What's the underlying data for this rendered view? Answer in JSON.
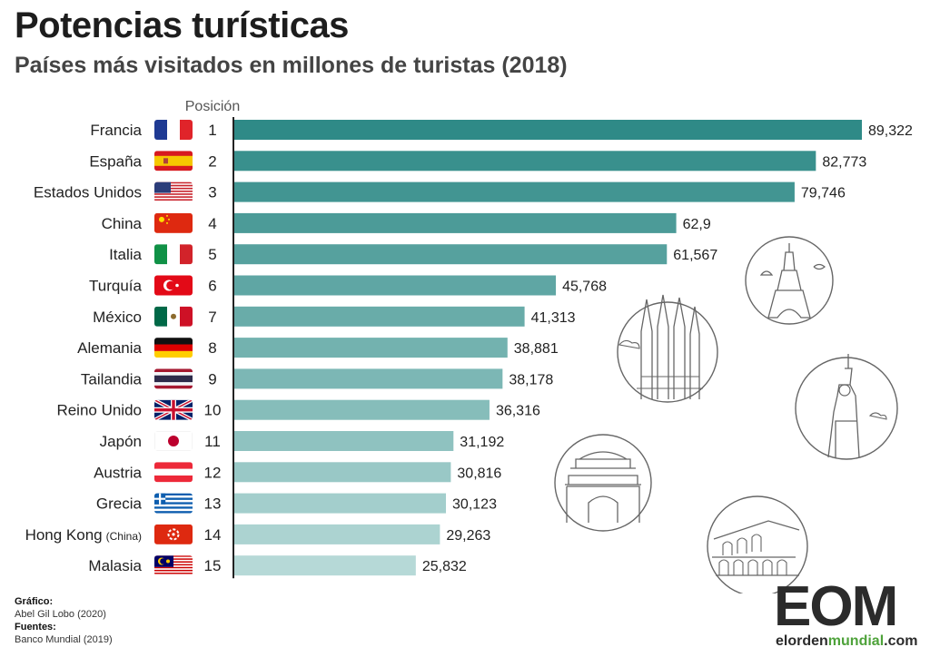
{
  "title": "Potencias turísticas",
  "subtitle": "Países más visitados en millones de turistas (2018)",
  "position_header": "Posición",
  "chart_data": {
    "type": "bar",
    "orientation": "horizontal",
    "title": "Potencias turísticas",
    "subtitle": "Países más visitados en millones de turistas (2018)",
    "categories": [
      "Francia",
      "España",
      "Estados Unidos",
      "China",
      "Italia",
      "Turquía",
      "México",
      "Alemania",
      "Tailandia",
      "Reino Unido",
      "Japón",
      "Austria",
      "Grecia",
      "Hong Kong",
      "Malasia"
    ],
    "category_notes": [
      "",
      "",
      "",
      "",
      "",
      "",
      "",
      "",
      "",
      "",
      "",
      "",
      "",
      "(China)",
      ""
    ],
    "positions": [
      "1",
      "2",
      "3",
      "4",
      "5",
      "6",
      "7",
      "8",
      "9",
      "10",
      "11",
      "12",
      "13",
      "14",
      "15"
    ],
    "values": [
      89.322,
      82.773,
      79.746,
      62.9,
      61.567,
      45.768,
      41.313,
      38.881,
      38.178,
      36.316,
      31.192,
      30.816,
      30.123,
      29.263,
      25.832
    ],
    "value_labels": [
      "89,322",
      "82,773",
      "79,746",
      "62,9",
      "61,567",
      "45,768",
      "41,313",
      "38,881",
      "38,178",
      "36,316",
      "31,192",
      "30,816",
      "30,123",
      "29,263",
      "25,832"
    ],
    "xlim": [
      0,
      89.322
    ],
    "grid": false,
    "bar_color_start": "#2f8a87",
    "bar_color_end": "#b6d9d7"
  },
  "flags": [
    "france-flag-icon",
    "spain-flag-icon",
    "usa-flag-icon",
    "china-flag-icon",
    "italy-flag-icon",
    "turkey-flag-icon",
    "mexico-flag-icon",
    "germany-flag-icon",
    "thailand-flag-icon",
    "uk-flag-icon",
    "japan-flag-icon",
    "austria-flag-icon",
    "greece-flag-icon",
    "hongkong-flag-icon",
    "malaysia-flag-icon"
  ],
  "credits": {
    "chart_label": "Gráfico:",
    "chart_author": "Abel Gil Lobo (2020)",
    "sources_label": "Fuentes:",
    "sources_value": "Banco Mundial (2019)"
  },
  "logo": {
    "letters": "EOM",
    "url_part1": "elorden",
    "url_part2": "mundial",
    "url_part3": ".com"
  }
}
